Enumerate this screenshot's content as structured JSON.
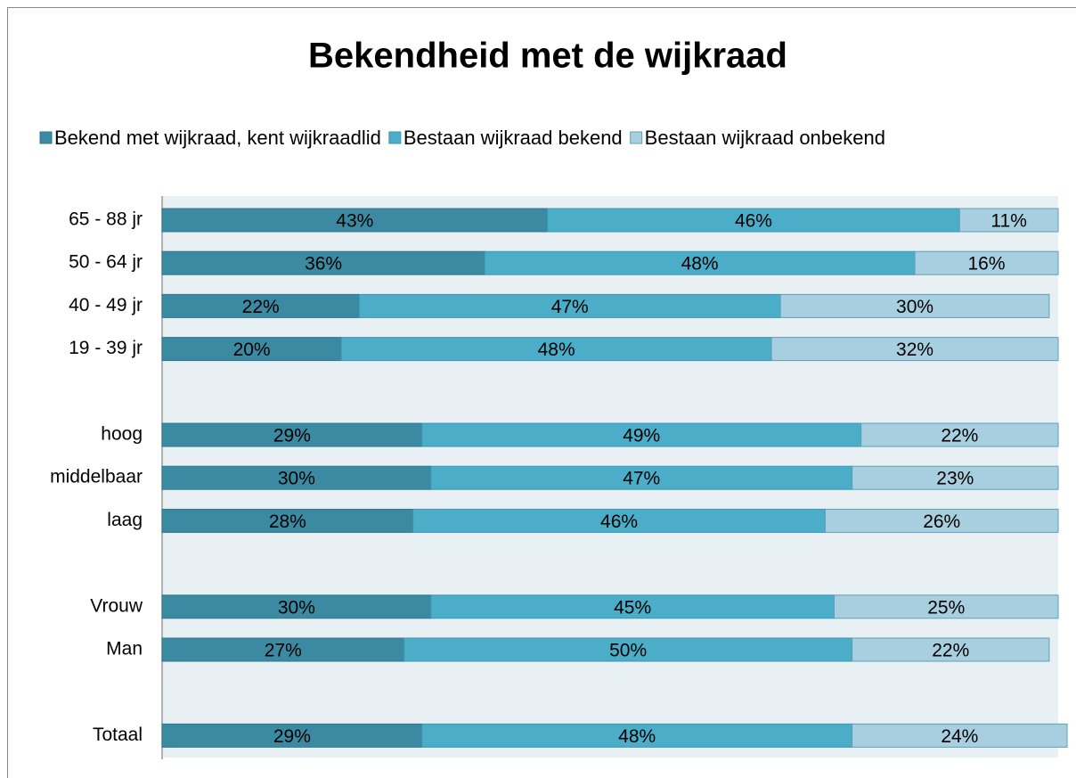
{
  "chart_data": {
    "type": "stacked_bar_horizontal",
    "title": "Bekendheid met de wijkraad",
    "categories": [
      "65 - 88 jr",
      "50 - 64 jr",
      "40 - 49 jr",
      "19 - 39 jr",
      null,
      "hoog",
      "middelbaar",
      "laag",
      null,
      "Vrouw",
      "Man",
      null,
      "Totaal"
    ],
    "series": [
      {
        "name": "Bekend met wijkraad, kent wijkraadlid",
        "color": "#3c8aa2",
        "values": [
          43,
          36,
          22,
          20,
          null,
          29,
          30,
          28,
          null,
          30,
          27,
          null,
          29
        ],
        "value_labels": [
          "43%",
          "36%",
          "22%",
          "20%",
          null,
          "29%",
          "30%",
          "28%",
          null,
          "30%",
          "27%",
          null,
          "29%"
        ]
      },
      {
        "name": "Bestaan wijkraad bekend",
        "color": "#4badc8",
        "values": [
          46,
          48,
          47,
          48,
          null,
          49,
          47,
          46,
          null,
          45,
          50,
          null,
          48
        ],
        "value_labels": [
          "46%",
          "48%",
          "47%",
          "48%",
          null,
          "49%",
          "47%",
          "46%",
          null,
          "45%",
          "50%",
          null,
          "48%"
        ]
      },
      {
        "name": "Bestaan wijkraad onbekend",
        "color": "#a8cfdf",
        "values": [
          11,
          16,
          30,
          32,
          null,
          22,
          23,
          26,
          null,
          25,
          22,
          null,
          24
        ],
        "value_labels": [
          "11%",
          "16%",
          "30%",
          "32%",
          null,
          "22%",
          "23%",
          "26%",
          null,
          "25%",
          "22%",
          null,
          "24%"
        ]
      }
    ],
    "xlim": [
      0,
      100
    ]
  }
}
